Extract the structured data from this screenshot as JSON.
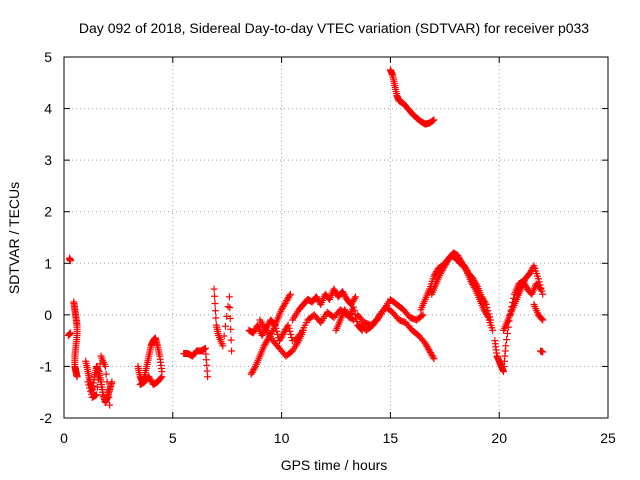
{
  "chart_data": {
    "type": "scatter",
    "title": "Day 092 of 2018, Sidereal Day-to-day VTEC variation (SDTVAR) for receiver p033",
    "xlabel": "GPS time / hours",
    "ylabel": "SDTVAR / TECUs",
    "xlim": [
      0,
      25
    ],
    "ylim": [
      -2,
      5
    ],
    "xticks": [
      "0",
      "5",
      "10",
      "15",
      "20",
      "25"
    ],
    "yticks": [
      "-2",
      "-1",
      "0",
      "1",
      "2",
      "3",
      "4",
      "5"
    ],
    "grid": true,
    "marker": "plus",
    "color": "#ff0000",
    "series": [
      {
        "name": "SDTVAR",
        "segments": [
          {
            "x": [
              0.2,
              0.3
            ],
            "y": [
              -0.4,
              -0.35
            ]
          },
          {
            "x": [
              0.25,
              0.3
            ],
            "y": [
              1.1,
              1.05
            ]
          },
          {
            "x": [
              0.45,
              0.5,
              0.55,
              0.6,
              0.6,
              0.55,
              0.5,
              0.5,
              0.55,
              0.6
            ],
            "y": [
              0.25,
              0.1,
              -0.05,
              -0.2,
              -0.4,
              -0.6,
              -0.8,
              -1.0,
              -1.1,
              -1.2
            ]
          },
          {
            "x": [
              1.0,
              1.1,
              1.2,
              1.3,
              1.4,
              1.5,
              1.6,
              1.7,
              1.8,
              1.9,
              2.0,
              2.1,
              2.2
            ],
            "y": [
              -0.9,
              -1.1,
              -1.3,
              -1.5,
              -1.2,
              -1.0,
              -1.1,
              -1.3,
              -1.55,
              -1.7,
              -1.6,
              -1.45,
              -1.3
            ]
          },
          {
            "x": [
              1.1,
              1.3,
              1.5,
              1.7,
              1.9,
              2.1
            ],
            "y": [
              -1.3,
              -1.6,
              -1.55,
              -0.8,
              -1.0,
              -1.75
            ]
          },
          {
            "x": [
              3.4,
              3.5,
              3.6,
              3.7,
              3.8,
              3.9,
              4.0,
              4.1,
              4.2,
              4.3,
              4.4,
              4.5
            ],
            "y": [
              -1.0,
              -1.2,
              -1.3,
              -1.2,
              -1.0,
              -0.8,
              -0.6,
              -0.5,
              -0.45,
              -0.6,
              -0.8,
              -1.1
            ]
          },
          {
            "x": [
              3.5,
              3.7,
              3.9,
              4.1,
              4.3,
              4.5
            ],
            "y": [
              -1.35,
              -1.3,
              -1.2,
              -1.35,
              -1.3,
              -1.2
            ]
          },
          {
            "x": [
              5.5,
              5.7,
              5.9,
              6.1,
              6.3,
              6.5,
              6.6
            ],
            "y": [
              -0.75,
              -0.75,
              -0.8,
              -0.7,
              -0.7,
              -0.65,
              -1.2
            ]
          },
          {
            "x": [
              6.9,
              7.0,
              7.1,
              7.3,
              7.6,
              7.7
            ],
            "y": [
              0.5,
              -0.2,
              -0.4,
              -0.6,
              0.35,
              -0.7
            ]
          },
          {
            "x": [
              8.5,
              8.7,
              8.9,
              9.1,
              9.3,
              9.5,
              9.7,
              9.9,
              10.1,
              10.3,
              10.5
            ],
            "y": [
              -0.3,
              -0.35,
              -0.2,
              -0.4,
              -0.25,
              -0.1,
              -0.2,
              -0.5,
              -0.35,
              -0.2,
              -0.5
            ]
          },
          {
            "x": [
              8.6,
              8.8,
              9.0,
              9.2,
              9.4,
              9.6,
              9.8,
              10.0,
              10.2,
              10.4
            ],
            "y": [
              -1.15,
              -1.0,
              -0.8,
              -0.6,
              -0.45,
              -0.3,
              -0.1,
              0.1,
              0.25,
              0.4
            ]
          },
          {
            "x": [
              9.0,
              9.3,
              9.6,
              9.9,
              10.2,
              10.5,
              10.8,
              11.0
            ],
            "y": [
              -0.1,
              -0.3,
              -0.5,
              -0.65,
              -0.8,
              -0.7,
              -0.5,
              -0.3
            ]
          },
          {
            "x": [
              10.5,
              10.8,
              11.0,
              11.2,
              11.4,
              11.6,
              11.8,
              12.0,
              12.2,
              12.4,
              12.6,
              12.8,
              13.0,
              13.2,
              13.4
            ],
            "y": [
              -0.1,
              0.1,
              0.2,
              0.3,
              0.25,
              0.35,
              0.2,
              0.4,
              0.3,
              0.5,
              0.35,
              0.45,
              0.3,
              0.2,
              0.35
            ]
          },
          {
            "x": [
              10.6,
              10.9,
              11.2,
              11.5,
              11.8,
              12.1,
              12.4,
              12.7,
              13.0,
              13.3
            ],
            "y": [
              -0.5,
              -0.35,
              -0.1,
              0.0,
              -0.15,
              0.05,
              -0.05,
              0.1,
              0.0,
              -0.1
            ]
          },
          {
            "x": [
              12.5,
              12.7,
              12.9,
              13.1,
              13.3,
              13.5,
              13.7
            ],
            "y": [
              -0.3,
              -0.1,
              0.1,
              -0.05,
              0.15,
              -0.2,
              -0.3
            ]
          },
          {
            "x": [
              13.5,
              13.8,
              14.1,
              14.4,
              14.7,
              15.0,
              15.3,
              15.6,
              15.9,
              16.2,
              16.5
            ],
            "y": [
              0.0,
              -0.15,
              -0.2,
              -0.1,
              0.1,
              0.3,
              0.2,
              0.1,
              -0.05,
              -0.1,
              0.0
            ]
          },
          {
            "x": [
              13.6,
              13.9,
              14.2,
              14.5,
              14.8,
              15.1,
              15.4,
              15.7,
              16.0,
              16.3,
              16.6,
              16.8,
              17.0
            ],
            "y": [
              -0.2,
              -0.3,
              -0.2,
              0.0,
              0.15,
              0.05,
              -0.1,
              -0.15,
              -0.3,
              -0.4,
              -0.55,
              -0.7,
              -0.85
            ]
          },
          {
            "x": [
              15.0,
              15.1,
              15.2,
              15.3,
              15.4,
              15.6,
              15.8,
              16.0,
              16.2,
              16.4,
              16.6,
              16.8,
              17.0
            ],
            "y": [
              4.75,
              4.65,
              4.45,
              4.25,
              4.15,
              4.1,
              4.0,
              3.9,
              3.82,
              3.75,
              3.7,
              3.72,
              3.78
            ]
          },
          {
            "x": [
              16.4,
              16.6,
              16.8,
              17.0,
              17.2,
              17.4,
              17.6,
              17.8,
              18.0,
              18.2,
              18.4,
              18.6,
              18.8,
              19.0,
              19.2,
              19.4,
              19.6
            ],
            "y": [
              0.1,
              0.3,
              0.5,
              0.75,
              0.9,
              0.95,
              1.05,
              1.15,
              1.1,
              1.0,
              0.95,
              0.8,
              0.7,
              0.55,
              0.35,
              0.2,
              -0.1
            ]
          },
          {
            "x": [
              16.9,
              17.1,
              17.3,
              17.5,
              17.7,
              17.9,
              18.1,
              18.3,
              18.5,
              18.7,
              18.9,
              19.1,
              19.3,
              19.5,
              19.7
            ],
            "y": [
              0.4,
              0.6,
              0.8,
              0.95,
              1.1,
              1.2,
              1.15,
              1.0,
              0.85,
              0.65,
              0.5,
              0.3,
              0.1,
              -0.05,
              -0.3
            ]
          },
          {
            "x": [
              19.8,
              19.9,
              20.0,
              20.1,
              20.2,
              20.3,
              20.5,
              20.7,
              20.9,
              21.1,
              21.3,
              21.5,
              21.7,
              21.9
            ],
            "y": [
              -0.5,
              -0.8,
              -0.9,
              -1.0,
              -1.1,
              -0.6,
              0.0,
              0.4,
              0.6,
              0.65,
              0.5,
              0.4,
              0.6,
              0.5
            ]
          },
          {
            "x": [
              20.2,
              20.4,
              20.6,
              20.8,
              21.0,
              21.2,
              21.4,
              21.6,
              21.8,
              22.0
            ],
            "y": [
              -0.3,
              -0.1,
              0.1,
              0.3,
              0.5,
              0.7,
              0.8,
              0.95,
              0.7,
              0.4
            ]
          },
          {
            "x": [
              21.6,
              21.8,
              22.0
            ],
            "y": [
              0.2,
              0.0,
              -0.1
            ]
          },
          {
            "x": [
              21.9,
              22.0
            ],
            "y": [
              -0.7,
              -0.72
            ]
          }
        ]
      }
    ]
  }
}
